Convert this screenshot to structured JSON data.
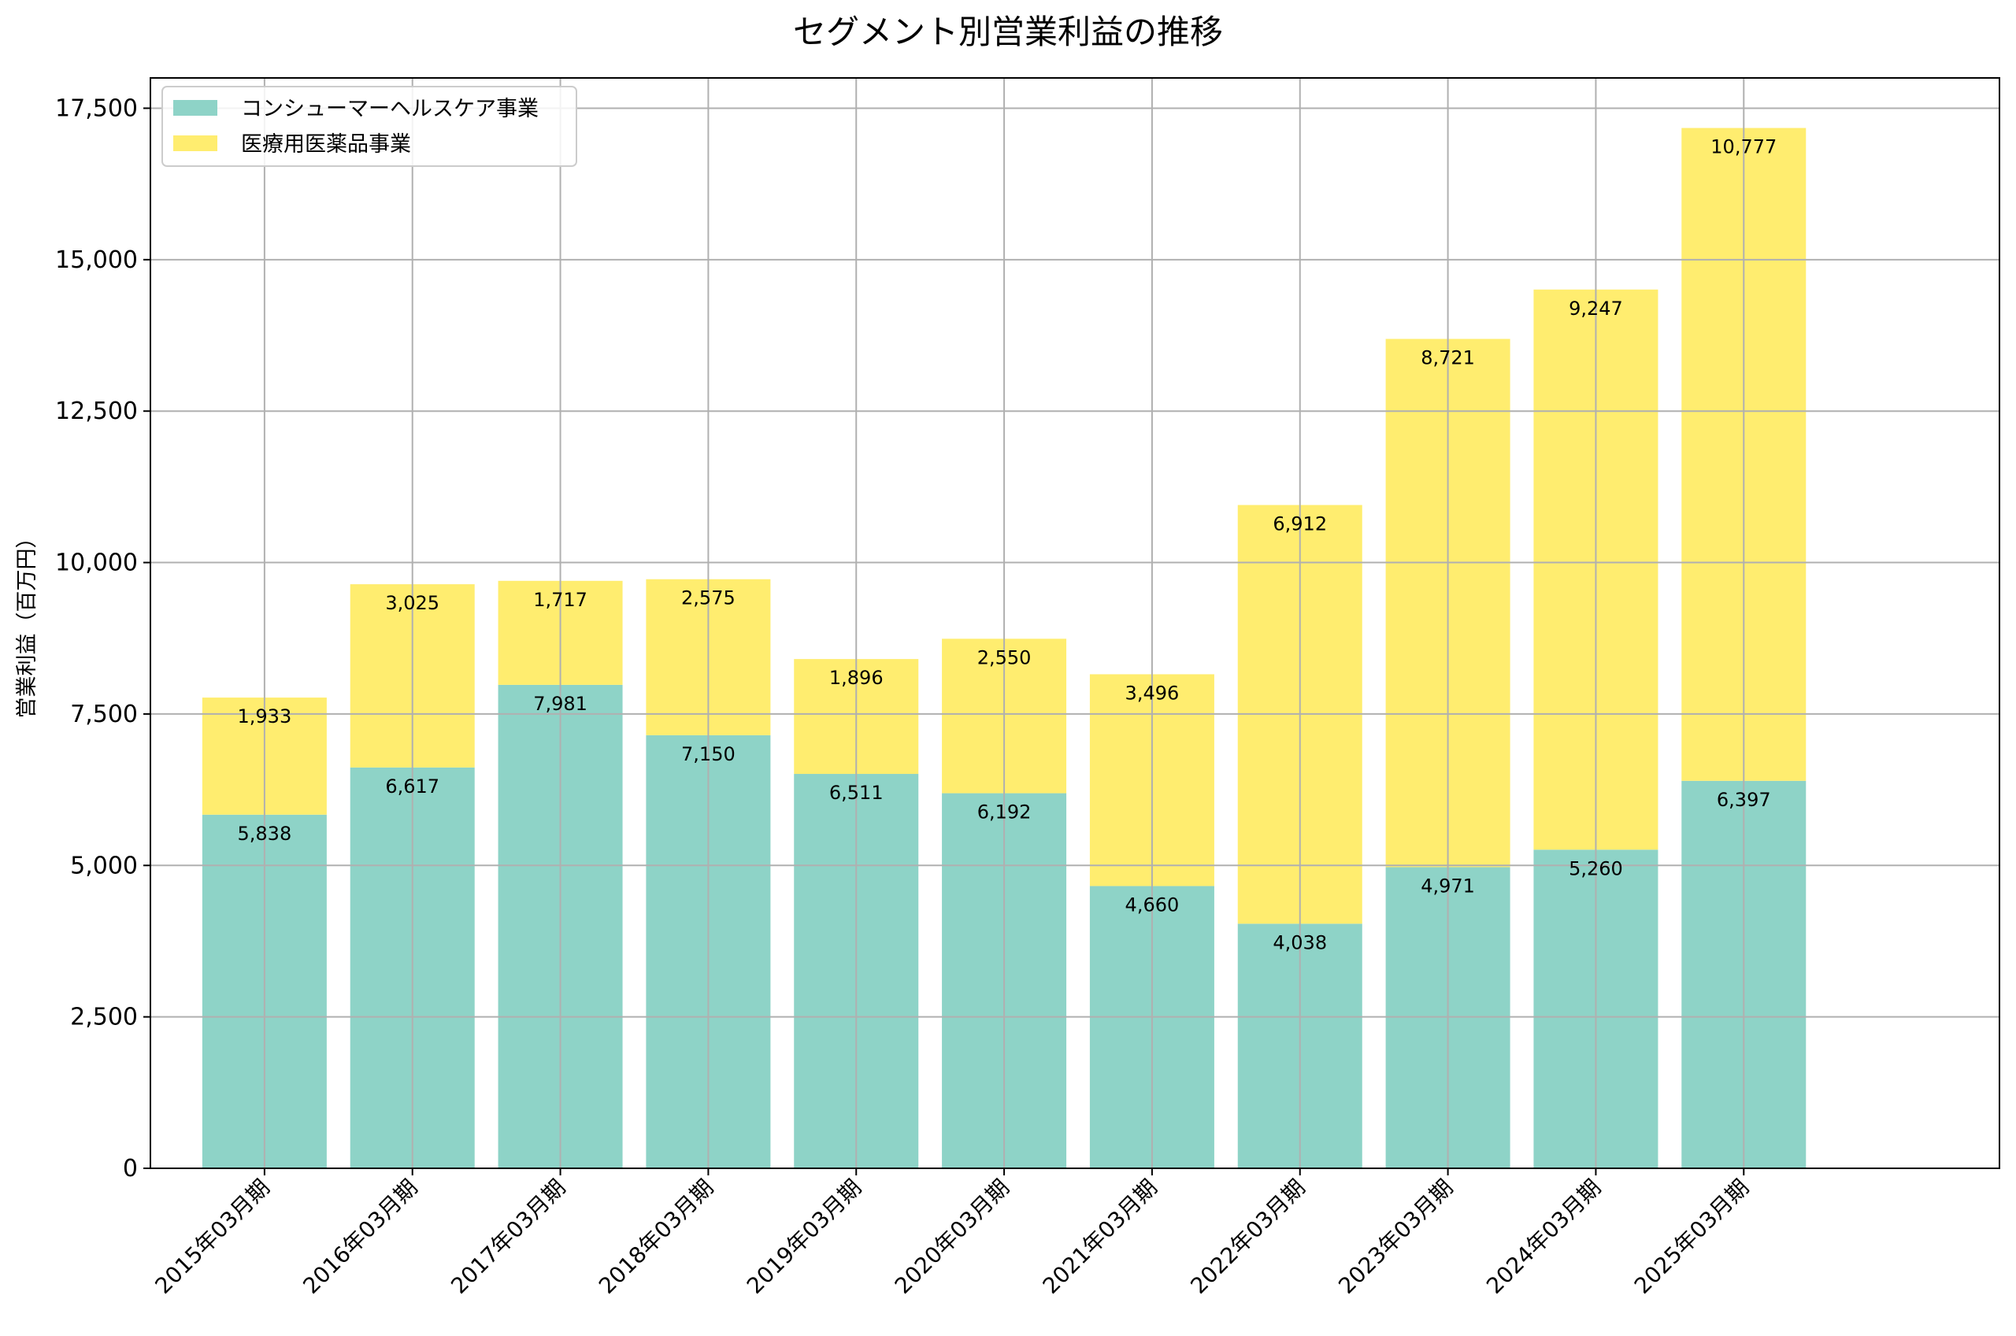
{
  "chart_data": {
    "type": "bar",
    "stacked": true,
    "title": "セグメント別営業利益の推移",
    "xlabel": "",
    "ylabel": "営業利益（百万円）",
    "categories": [
      "2015年03月期",
      "2016年03月期",
      "2017年03月期",
      "2018年03月期",
      "2019年03月期",
      "2020年03月期",
      "2021年03月期",
      "2022年03月期",
      "2023年03月期",
      "2024年03月期",
      "2025年03月期"
    ],
    "series": [
      {
        "name": "コンシューマーヘルスケア事業",
        "color": "#8ed3c7",
        "values": [
          5838,
          6617,
          7981,
          7150,
          6511,
          6192,
          4660,
          4038,
          4971,
          5260,
          6397
        ],
        "labels": [
          "5,838",
          "6,617",
          "7,981",
          "7,150",
          "6,511",
          "6,192",
          "4,660",
          "4,038",
          "4,971",
          "5,260",
          "6,397"
        ]
      },
      {
        "name": "医療用医薬品事業",
        "color": "#ffed6f",
        "values": [
          1933,
          3025,
          1717,
          2575,
          1896,
          2550,
          3496,
          6912,
          8721,
          9247,
          10777
        ],
        "labels": [
          "1,933",
          "3,025",
          "1,717",
          "2,575",
          "1,896",
          "2,550",
          "3,496",
          "6,912",
          "8,721",
          "9,247",
          "10,777"
        ]
      }
    ],
    "ylim": [
      0,
      18000
    ],
    "yticks": [
      0,
      2500,
      5000,
      7500,
      10000,
      12500,
      15000,
      17500
    ],
    "ytick_labels": [
      "0",
      "2,500",
      "5,000",
      "7,500",
      "10,000",
      "12,500",
      "15,000",
      "17,500"
    ],
    "grid": true,
    "legend_position": "top-left"
  }
}
